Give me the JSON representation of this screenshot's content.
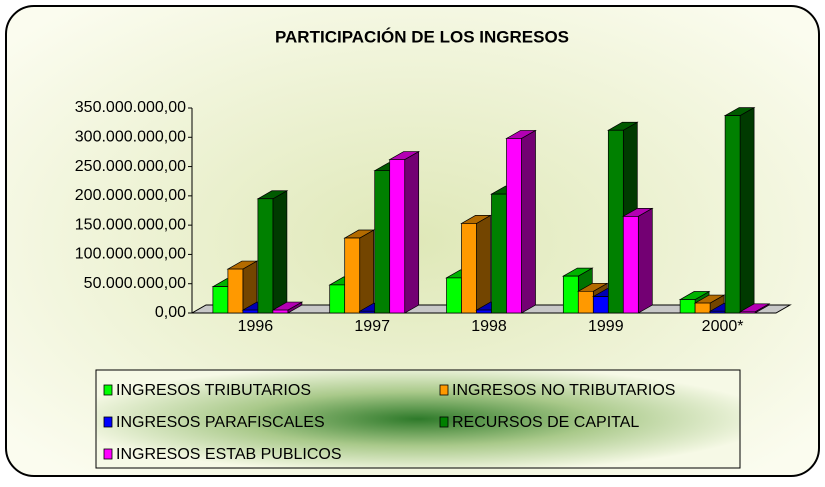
{
  "chart_data": {
    "type": "bar",
    "title": "PARTICIPACIÓN DE LOS INGRESOS",
    "categories": [
      "1996",
      "1997",
      "1998",
      "1999",
      "2000*"
    ],
    "series": [
      {
        "name": "INGRESOS TRIBUTARIOS",
        "color": "#00ff00",
        "values": [
          45000000,
          48000000,
          60000000,
          63000000,
          23000000
        ]
      },
      {
        "name": "INGRESOS NO TRIBUTARIOS",
        "color": "#ff9900",
        "values": [
          75000000,
          128000000,
          153000000,
          37000000,
          17000000
        ]
      },
      {
        "name": "INGRESOS PARAFISCALES",
        "color": "#0000ff",
        "values": [
          5000000,
          3000000,
          5000000,
          28000000,
          3000000
        ]
      },
      {
        "name": "RECURSOS DE CAPITAL",
        "color": "#008000",
        "values": [
          195000000,
          243000000,
          203000000,
          312000000,
          337000000
        ]
      },
      {
        "name": "INGRESOS ESTAB PUBLICOS",
        "color": "#ff00ff",
        "values": [
          5000000,
          262000000,
          298000000,
          165000000,
          2000000
        ]
      }
    ],
    "ylim": [
      0,
      350000000
    ],
    "yticks": [
      {
        "value": 0,
        "label": "0,00"
      },
      {
        "value": 50000000,
        "label": "50.000.000,00"
      },
      {
        "value": 100000000,
        "label": "100.000.000,00"
      },
      {
        "value": 150000000,
        "label": "150.000.000,00"
      },
      {
        "value": 200000000,
        "label": "200.000.000,00"
      },
      {
        "value": 250000000,
        "label": "250.000.000,00"
      },
      {
        "value": 300000000,
        "label": "300.000.000,00"
      },
      {
        "value": 350000000,
        "label": "350.000.000,00"
      }
    ],
    "grid": false,
    "legend": "bottom"
  }
}
